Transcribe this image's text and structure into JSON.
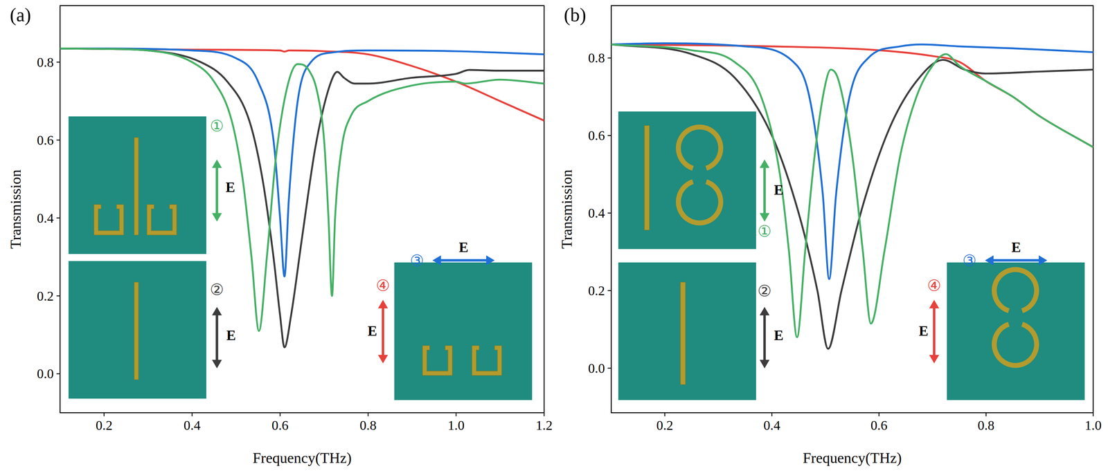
{
  "chart_data": [
    {
      "type": "line",
      "panel_label": "(a)",
      "x_label": "Frequency(THz)",
      "y_label": "Transmission",
      "xlim": [
        0.1,
        1.2
      ],
      "ylim": [
        -0.1,
        0.945
      ],
      "xticks": [
        0.2,
        0.4,
        0.6,
        0.8,
        {
          "value": 1,
          "label": "1.0"
        },
        1.2
      ],
      "yticks": [
        {
          "value": 0,
          "label": "0.0"
        },
        0.2,
        0.4,
        0.6,
        0.8
      ],
      "series": [
        {
          "name": "①",
          "color": "#44b064",
          "x": [
            0.1,
            0.2,
            0.3,
            0.4,
            0.45,
            0.49,
            0.515,
            0.535,
            0.552,
            0.57,
            0.59,
            0.615,
            0.64,
            0.665,
            0.685,
            0.7,
            0.71,
            0.718,
            0.725,
            0.74,
            0.76,
            0.8,
            0.9,
            1.0,
            1.02,
            1.1,
            1.2
          ],
          "values": [
            0.835,
            0.834,
            0.83,
            0.8,
            0.75,
            0.65,
            0.5,
            0.3,
            0.11,
            0.3,
            0.55,
            0.73,
            0.795,
            0.78,
            0.72,
            0.6,
            0.4,
            0.2,
            0.4,
            0.58,
            0.66,
            0.7,
            0.74,
            0.75,
            0.745,
            0.755,
            0.745
          ]
        },
        {
          "name": "②",
          "color": "#3c3c3c",
          "x": [
            0.1,
            0.2,
            0.3,
            0.42,
            0.48,
            0.53,
            0.56,
            0.585,
            0.6,
            0.61,
            0.625,
            0.65,
            0.68,
            0.71,
            0.73,
            0.745,
            0.77,
            0.8,
            0.9,
            1.0,
            1.03,
            1.1,
            1.2
          ],
          "values": [
            0.835,
            0.834,
            0.83,
            0.8,
            0.75,
            0.65,
            0.5,
            0.3,
            0.15,
            0.068,
            0.15,
            0.35,
            0.58,
            0.73,
            0.775,
            0.76,
            0.745,
            0.745,
            0.76,
            0.77,
            0.78,
            0.778,
            0.778
          ]
        },
        {
          "name": "③",
          "color": "#1f6fd6",
          "x": [
            0.1,
            0.2,
            0.4,
            0.5,
            0.55,
            0.585,
            0.6,
            0.61,
            0.62,
            0.64,
            0.67,
            0.72,
            0.8,
            1.0,
            1.2
          ],
          "values": [
            0.835,
            0.835,
            0.83,
            0.81,
            0.75,
            0.6,
            0.4,
            0.25,
            0.45,
            0.7,
            0.8,
            0.825,
            0.83,
            0.828,
            0.82
          ]
        },
        {
          "name": "④",
          "color": "#e8403a",
          "x": [
            0.1,
            0.4,
            0.6,
            0.61,
            0.62,
            0.7,
            0.8,
            0.9,
            1.0,
            1.1,
            1.2
          ],
          "values": [
            0.835,
            0.832,
            0.83,
            0.827,
            0.83,
            0.828,
            0.82,
            0.79,
            0.75,
            0.7,
            0.65
          ]
        }
      ],
      "annotations": [
        {
          "text": "E"
        },
        {
          "text": "E"
        },
        {
          "text": "E"
        },
        {
          "text": "E"
        }
      ]
    },
    {
      "type": "line",
      "panel_label": "(b)",
      "x_label": "Frequency(THz)",
      "y_label": "Transmission",
      "xlim": [
        0.1,
        1.0
      ],
      "ylim": [
        -0.115,
        0.935
      ],
      "xticks": [
        0.2,
        0.4,
        0.6,
        0.8,
        {
          "value": 1,
          "label": "1.0"
        }
      ],
      "yticks": [
        {
          "value": 0,
          "label": "0.0"
        },
        0.2,
        0.4,
        0.6,
        0.8
      ],
      "series": [
        {
          "name": "①",
          "color": "#44b064",
          "x": [
            0.1,
            0.25,
            0.33,
            0.38,
            0.415,
            0.432,
            0.447,
            0.462,
            0.48,
            0.498,
            0.51,
            0.525,
            0.55,
            0.57,
            0.585,
            0.61,
            0.64,
            0.67,
            0.7,
            0.725,
            0.75,
            0.8,
            0.85,
            0.9,
            1.0
          ],
          "values": [
            0.835,
            0.82,
            0.79,
            0.7,
            0.5,
            0.3,
            0.08,
            0.3,
            0.55,
            0.72,
            0.77,
            0.74,
            0.55,
            0.3,
            0.115,
            0.3,
            0.55,
            0.7,
            0.78,
            0.81,
            0.78,
            0.74,
            0.7,
            0.65,
            0.57
          ]
        },
        {
          "name": "②",
          "color": "#3c3c3c",
          "x": [
            0.1,
            0.25,
            0.33,
            0.4,
            0.45,
            0.485,
            0.505,
            0.53,
            0.57,
            0.62,
            0.67,
            0.72,
            0.76,
            0.8,
            0.9,
            1.0
          ],
          "values": [
            0.835,
            0.81,
            0.75,
            0.6,
            0.4,
            0.2,
            0.05,
            0.2,
            0.42,
            0.62,
            0.74,
            0.795,
            0.77,
            0.76,
            0.765,
            0.77
          ]
        },
        {
          "name": "③",
          "color": "#1f6fd6",
          "x": [
            0.1,
            0.2,
            0.35,
            0.44,
            0.47,
            0.495,
            0.507,
            0.52,
            0.545,
            0.58,
            0.64,
            0.68,
            0.75,
            0.85,
            1.0
          ],
          "values": [
            0.835,
            0.838,
            0.83,
            0.79,
            0.7,
            0.45,
            0.23,
            0.45,
            0.7,
            0.8,
            0.83,
            0.835,
            0.83,
            0.825,
            0.815
          ]
        },
        {
          "name": "④",
          "color": "#e8403a",
          "x": [
            0.1,
            0.4,
            0.6,
            0.7,
            0.75,
            0.8,
            0.85,
            0.9,
            1.0
          ],
          "values": [
            0.835,
            0.83,
            0.82,
            0.805,
            0.79,
            0.74,
            0.7,
            0.65,
            0.57
          ]
        }
      ],
      "annotations": [
        {
          "text": "E"
        },
        {
          "text": "E"
        },
        {
          "text": "E"
        },
        {
          "text": "E"
        }
      ]
    }
  ]
}
